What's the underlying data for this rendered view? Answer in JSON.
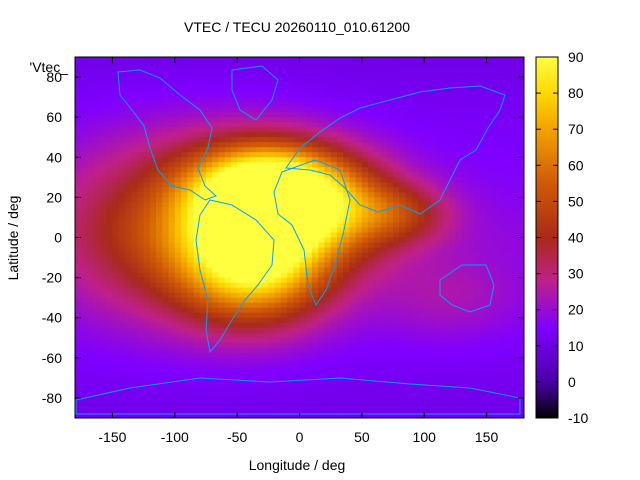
{
  "chart_data": {
    "type": "heatmap",
    "title": "VTEC / TECU 20260110_010.61200",
    "xlabel": "Longitude / deg",
    "ylabel": "Latitude / deg",
    "xlim": [
      -180,
      180
    ],
    "ylim": [
      -90,
      90
    ],
    "x_ticks": [
      "-150",
      "-100",
      "-50",
      "0",
      "50",
      "100",
      "150"
    ],
    "y_ticks": [
      "80",
      "60",
      "40",
      "20",
      "0",
      "-20",
      "-40",
      "-60",
      "-80"
    ],
    "colorbar": {
      "range": [
        -10,
        90
      ],
      "ticks": [
        "90",
        "80",
        "70",
        "60",
        "50",
        "40",
        "30",
        "20",
        "10",
        "0",
        "-10"
      ],
      "colors": [
        "#000000",
        "#4a00a8",
        "#7f00ff",
        "#c0208a",
        "#a82a18",
        "#d05a06",
        "#f2a200",
        "#ffd800",
        "#ffff40"
      ]
    },
    "legend_entry": "'Vtec_",
    "background_level": 18,
    "features": [
      {
        "lon": -25,
        "lat": 22,
        "peak": 85,
        "sx": 40,
        "sy": 16
      },
      {
        "lon": -35,
        "lat": -12,
        "peak": 58,
        "sx": 40,
        "sy": 20
      },
      {
        "lon": -80,
        "lat": 5,
        "peak": 38,
        "sx": 70,
        "sy": 30
      },
      {
        "lon": 30,
        "lat": 15,
        "peak": 28,
        "sx": 40,
        "sy": 18
      },
      {
        "lon": 80,
        "lat": 12,
        "peak": 20,
        "sx": 30,
        "sy": 10
      },
      {
        "lon": 120,
        "lat": -30,
        "peak": 8,
        "sx": 40,
        "sy": 15
      }
    ],
    "coastline_color": "#00a0ff"
  }
}
